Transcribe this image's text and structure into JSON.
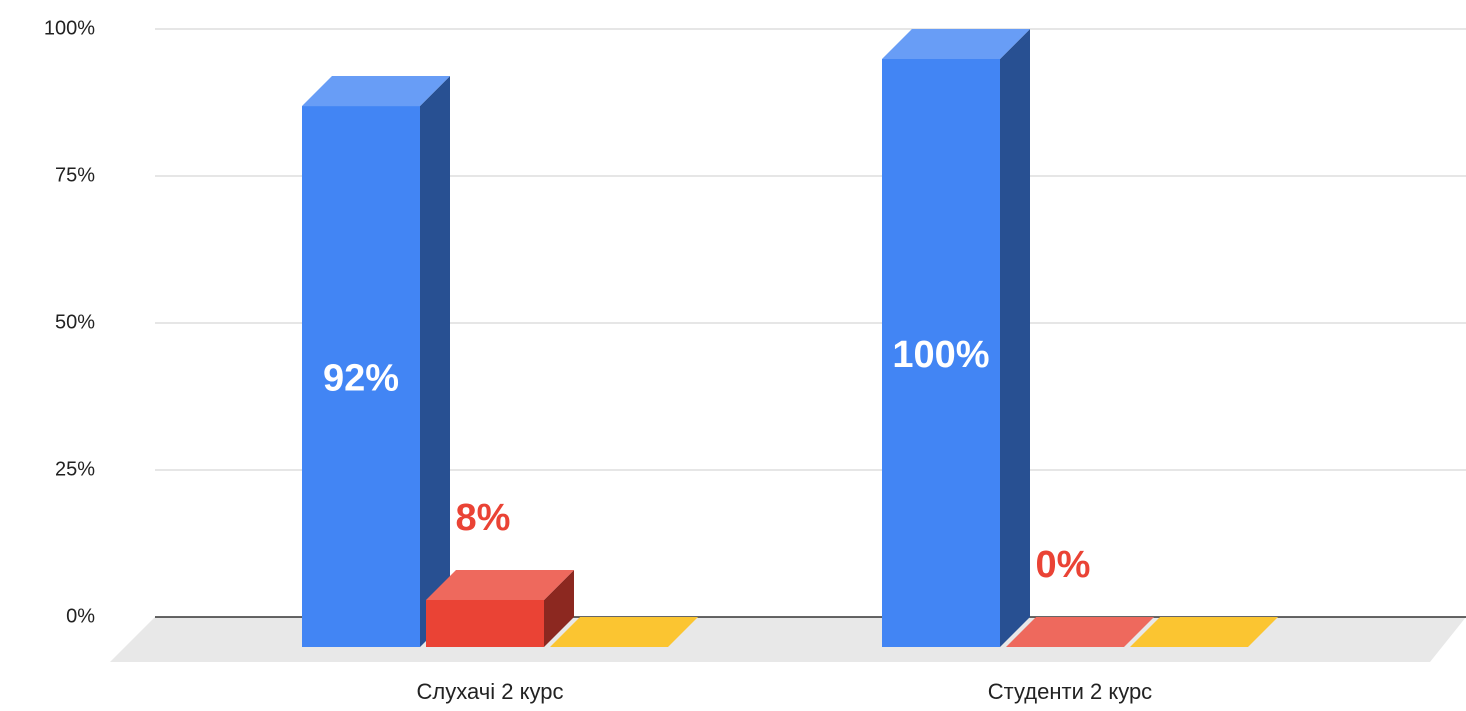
{
  "chart_data": {
    "type": "bar3d",
    "categories": [
      "Слухачі 2 курс",
      "Студенти 2 курс"
    ],
    "series": [
      {
        "color": "#4285f4",
        "values": [
          92,
          100
        ],
        "value_labels": [
          "92%",
          "100%"
        ]
      },
      {
        "color": "#ea4335",
        "values": [
          8,
          0
        ],
        "value_labels": [
          "8%",
          "0%"
        ]
      },
      {
        "color": "#fbc531",
        "values": [
          0,
          0
        ]
      }
    ],
    "ylim": [
      0,
      100
    ],
    "yticks": [
      {
        "value": 0,
        "label": "0%"
      },
      {
        "value": 25,
        "label": "25%"
      },
      {
        "value": 50,
        "label": "50%"
      },
      {
        "value": 75,
        "label": "75%"
      },
      {
        "value": 100,
        "label": "100%"
      }
    ],
    "grid": true
  }
}
